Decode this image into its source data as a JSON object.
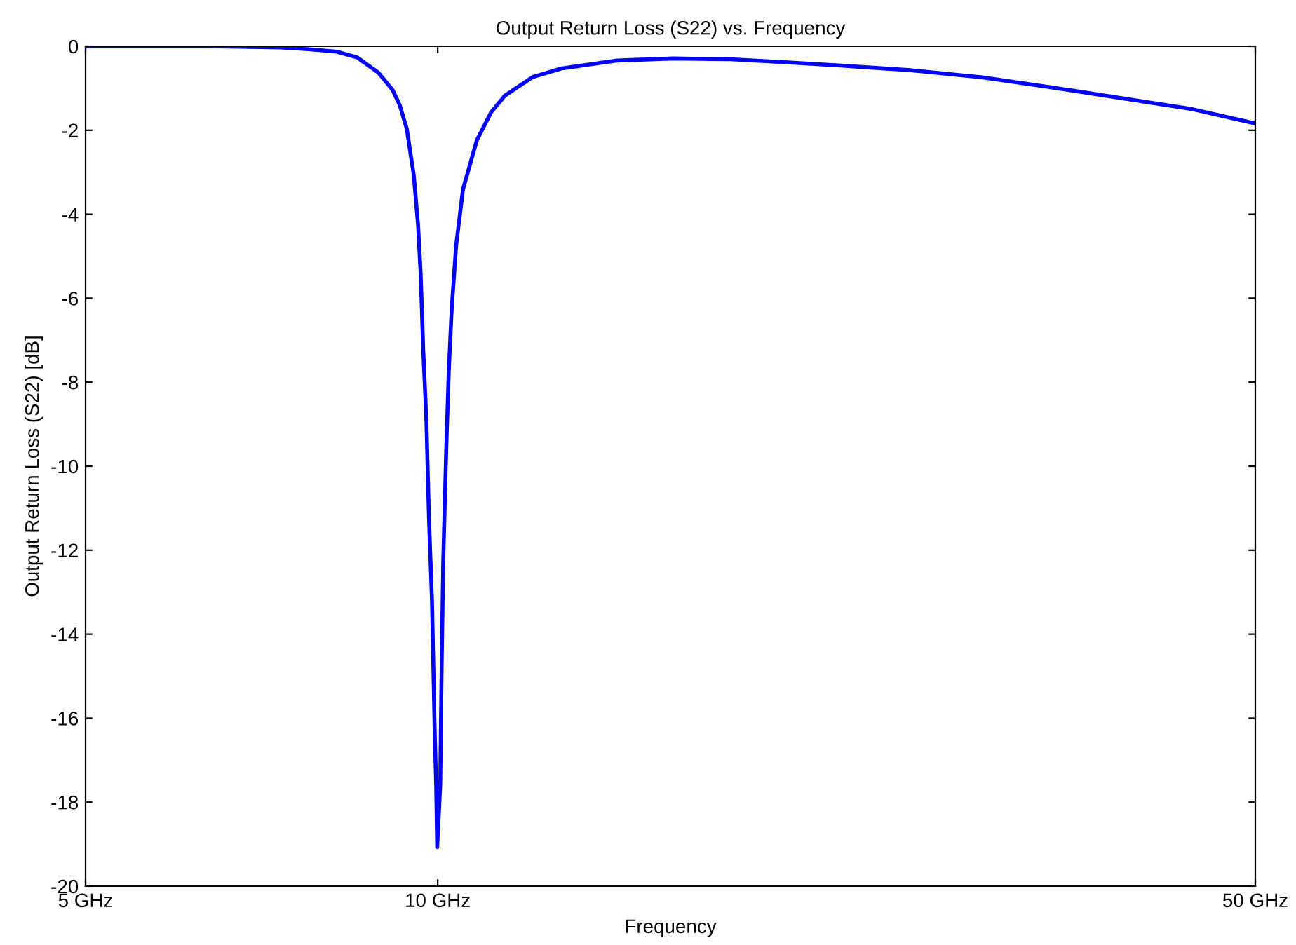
{
  "chart_data": {
    "type": "line",
    "title": "Output Return Loss (S22) vs. Frequency",
    "xlabel": "Frequency",
    "ylabel": "Output Return Loss (S22) [dB]",
    "log": "x",
    "grid": false,
    "legend": false,
    "marker": "none",
    "line_style": "solid",
    "xlim": [
      5,
      50
    ],
    "xticks": [
      {
        "value": 5,
        "label": "5 GHz"
      },
      {
        "value": 10,
        "label": "10 GHz"
      },
      {
        "value": 50,
        "label": "50 GHz"
      }
    ],
    "ylim": [
      -20,
      0
    ],
    "yticks": [
      -20,
      -18,
      -16,
      -14,
      -12,
      -10,
      -8,
      -6,
      -4,
      -2,
      0
    ],
    "series": [
      {
        "color": "#0000ff",
        "x": [
          5,
          6.39,
          7.34,
          7.76,
          8.2,
          8.54,
          8.9,
          9.15,
          9.28,
          9.41,
          9.54,
          9.62,
          9.67,
          9.72,
          9.78,
          9.83,
          9.89,
          9.94,
          9.97,
          9.99,
          10.05,
          10.08,
          10.11,
          10.17,
          10.22,
          10.28,
          10.37,
          10.51,
          10.8,
          11.11,
          11.42,
          12.06,
          12.75,
          14.24,
          15.9,
          17.8,
          19.8,
          22.1,
          25.4,
          29.2,
          33.5,
          38.5,
          44.2,
          50
        ],
        "values": [
          0,
          0,
          -0.03,
          -0.07,
          -0.13,
          -0.27,
          -0.63,
          -1.04,
          -1.4,
          -1.97,
          -3.07,
          -4.24,
          -5.41,
          -7.25,
          -8.91,
          -11.25,
          -13.26,
          -16.26,
          -17.6,
          -19.07,
          -17.6,
          -14.6,
          -12.25,
          -9.58,
          -7.75,
          -6.24,
          -4.74,
          -3.41,
          -2.24,
          -1.57,
          -1.17,
          -0.73,
          -0.53,
          -0.34,
          -0.29,
          -0.31,
          -0.38,
          -0.46,
          -0.57,
          -0.74,
          -0.98,
          -1.24,
          -1.5,
          -1.84
        ]
      }
    ]
  }
}
